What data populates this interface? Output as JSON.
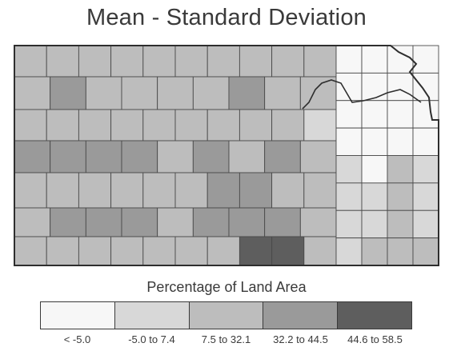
{
  "title": "Mean - Standard Deviation",
  "legend": {
    "title": "Percentage of Land Area",
    "classes": [
      {
        "label": "< -5.0",
        "color": "#f7f7f7"
      },
      {
        "label": "-5.0 to 7.4",
        "color": "#d8d8d8"
      },
      {
        "label": "7.5 to 32.1",
        "color": "#bdbdbd"
      },
      {
        "label": "32.2 to 44.5",
        "color": "#9a9a9a"
      },
      {
        "label": "44.6 to 58.5",
        "color": "#5e5e5e"
      }
    ]
  },
  "county_classes": [
    [
      2,
      2,
      2,
      2,
      2,
      2,
      2,
      2,
      2,
      2
    ],
    [
      2,
      3,
      2,
      2,
      2,
      2,
      3,
      2,
      2
    ],
    [
      2,
      2,
      2,
      2,
      2,
      2,
      2,
      2,
      2,
      1
    ],
    [
      3,
      3,
      3,
      3,
      2,
      3,
      2,
      3,
      2
    ],
    [
      2,
      2,
      2,
      2,
      2,
      2,
      3,
      3,
      2,
      2
    ],
    [
      2,
      3,
      3,
      3,
      2,
      3,
      3,
      3,
      2
    ],
    [
      2,
      2,
      2,
      2,
      2,
      2,
      2,
      4,
      4,
      2
    ]
  ],
  "east_classes": [
    [
      0,
      0,
      0,
      0
    ],
    [
      0,
      0,
      0,
      0
    ],
    [
      0,
      0,
      0,
      0
    ],
    [
      0,
      0,
      0,
      0
    ],
    [
      1,
      0,
      2,
      1
    ],
    [
      1,
      1,
      2,
      1
    ],
    [
      1,
      1,
      2,
      1
    ],
    [
      1,
      2,
      2,
      2
    ]
  ]
}
